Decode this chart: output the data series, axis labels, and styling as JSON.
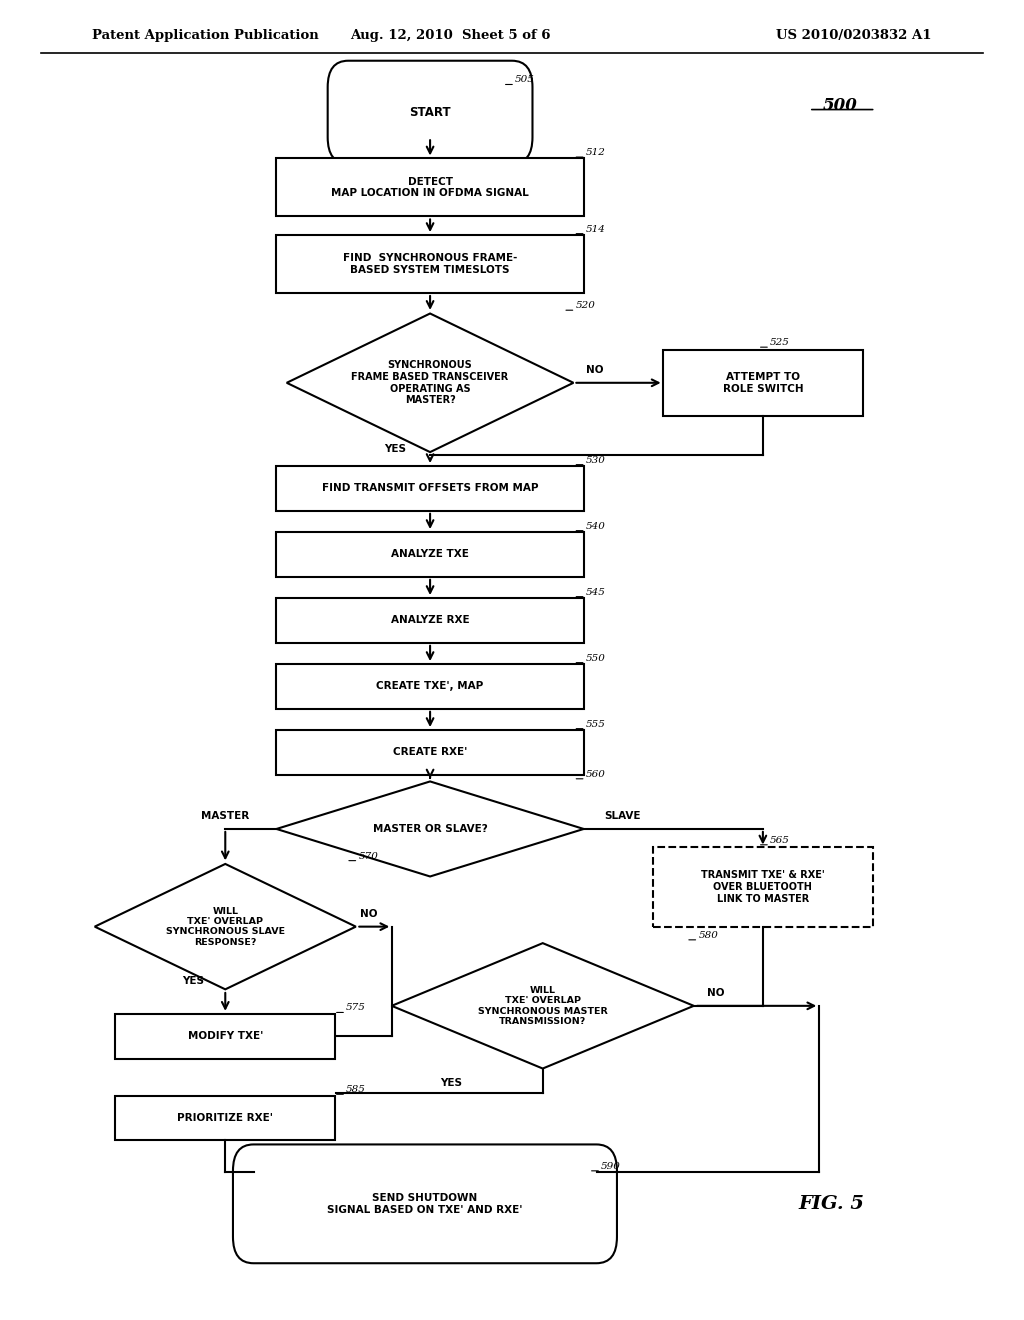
{
  "bg_color": "#ffffff",
  "header_left": "Patent Application Publication",
  "header_mid": "Aug. 12, 2010  Sheet 5 of 6",
  "header_right": "US 2010/0203832 A1",
  "fig_label": "FIG. 5",
  "diagram_ref": "500"
}
